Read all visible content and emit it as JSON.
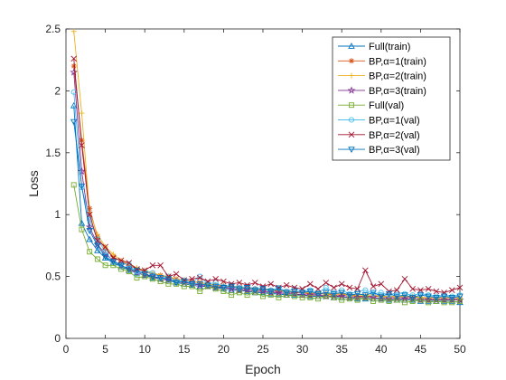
{
  "chart_data": {
    "type": "line",
    "xlabel": "Epoch",
    "ylabel": "Loss",
    "xlim": [
      0,
      50
    ],
    "ylim": [
      0,
      2.5
    ],
    "xticks": [
      0,
      5,
      10,
      15,
      20,
      25,
      30,
      35,
      40,
      45,
      50
    ],
    "yticks": [
      0,
      0.5,
      1,
      1.5,
      2,
      2.5
    ],
    "ytick_labels": [
      "0",
      "0.5",
      "1",
      "1.5",
      "2",
      "2.5"
    ],
    "grid": false,
    "legend": "top-right",
    "x": [
      1,
      2,
      3,
      4,
      5,
      6,
      7,
      8,
      9,
      10,
      11,
      12,
      13,
      14,
      15,
      16,
      17,
      18,
      19,
      20,
      21,
      22,
      23,
      24,
      25,
      26,
      27,
      28,
      29,
      30,
      31,
      32,
      33,
      34,
      35,
      36,
      37,
      38,
      39,
      40,
      41,
      42,
      43,
      44,
      45,
      46,
      47,
      48,
      49,
      50
    ],
    "series": [
      {
        "name": "Full(train)",
        "color": "#0072BD",
        "marker": "triangle-up",
        "values": [
          1.88,
          0.93,
          0.8,
          0.71,
          0.65,
          0.61,
          0.58,
          0.55,
          0.53,
          0.51,
          0.49,
          0.48,
          0.47,
          0.45,
          0.44,
          0.43,
          0.42,
          0.42,
          0.41,
          0.4,
          0.39,
          0.39,
          0.38,
          0.37,
          0.37,
          0.36,
          0.36,
          0.35,
          0.35,
          0.35,
          0.34,
          0.34,
          0.34,
          0.33,
          0.33,
          0.33,
          0.32,
          0.32,
          0.32,
          0.32,
          0.31,
          0.31,
          0.31,
          0.31,
          0.3,
          0.3,
          0.3,
          0.3,
          0.3,
          0.29
        ]
      },
      {
        "name": "BP,α=1(train)",
        "color": "#D95319",
        "marker": "asterisk",
        "values": [
          2.2,
          1.6,
          1.05,
          0.82,
          0.72,
          0.66,
          0.62,
          0.59,
          0.56,
          0.54,
          0.52,
          0.51,
          0.49,
          0.48,
          0.47,
          0.46,
          0.45,
          0.44,
          0.43,
          0.42,
          0.42,
          0.41,
          0.4,
          0.4,
          0.39,
          0.39,
          0.38,
          0.38,
          0.37,
          0.37,
          0.36,
          0.36,
          0.36,
          0.35,
          0.35,
          0.35,
          0.34,
          0.34,
          0.34,
          0.34,
          0.33,
          0.33,
          0.33,
          0.33,
          0.33,
          0.32,
          0.32,
          0.32,
          0.32,
          0.32
        ]
      },
      {
        "name": "BP,α=2(train)",
        "color": "#EDB120",
        "marker": "plus",
        "values": [
          2.48,
          1.82,
          1.02,
          0.84,
          0.74,
          0.68,
          0.63,
          0.6,
          0.57,
          0.55,
          0.53,
          0.51,
          0.5,
          0.48,
          0.47,
          0.46,
          0.45,
          0.44,
          0.43,
          0.43,
          0.42,
          0.41,
          0.41,
          0.4,
          0.4,
          0.39,
          0.39,
          0.38,
          0.38,
          0.37,
          0.37,
          0.37,
          0.36,
          0.36,
          0.36,
          0.35,
          0.35,
          0.35,
          0.35,
          0.34,
          0.34,
          0.34,
          0.34,
          0.34,
          0.33,
          0.33,
          0.33,
          0.33,
          0.33,
          0.33
        ]
      },
      {
        "name": "BP,α=3(train)",
        "color": "#7E2F8E",
        "marker": "star",
        "values": [
          2.15,
          1.35,
          0.9,
          0.76,
          0.68,
          0.63,
          0.59,
          0.56,
          0.53,
          0.51,
          0.5,
          0.48,
          0.47,
          0.46,
          0.45,
          0.44,
          0.43,
          0.42,
          0.41,
          0.41,
          0.4,
          0.39,
          0.39,
          0.38,
          0.38,
          0.37,
          0.37,
          0.36,
          0.36,
          0.35,
          0.35,
          0.35,
          0.34,
          0.34,
          0.34,
          0.33,
          0.33,
          0.33,
          0.33,
          0.32,
          0.32,
          0.32,
          0.32,
          0.32,
          0.31,
          0.31,
          0.31,
          0.31,
          0.31,
          0.31
        ]
      },
      {
        "name": "Full(val)",
        "color": "#77AC30",
        "marker": "square",
        "values": [
          1.24,
          0.88,
          0.7,
          0.64,
          0.59,
          0.59,
          0.56,
          0.54,
          0.49,
          0.5,
          0.48,
          0.46,
          0.44,
          0.44,
          0.42,
          0.42,
          0.38,
          0.42,
          0.4,
          0.38,
          0.35,
          0.37,
          0.35,
          0.37,
          0.34,
          0.35,
          0.33,
          0.35,
          0.34,
          0.33,
          0.33,
          0.32,
          0.34,
          0.33,
          0.31,
          0.32,
          0.31,
          0.33,
          0.3,
          0.31,
          0.3,
          0.31,
          0.29,
          0.3,
          0.31,
          0.29,
          0.3,
          0.29,
          0.29,
          0.3
        ]
      },
      {
        "name": "BP,α=1(val)",
        "color": "#4DBEEE",
        "marker": "circle",
        "values": [
          1.99,
          1.22,
          0.96,
          0.8,
          0.7,
          0.62,
          0.6,
          0.6,
          0.52,
          0.54,
          0.53,
          0.49,
          0.5,
          0.46,
          0.47,
          0.45,
          0.5,
          0.44,
          0.45,
          0.42,
          0.43,
          0.41,
          0.42,
          0.4,
          0.41,
          0.39,
          0.41,
          0.38,
          0.4,
          0.38,
          0.39,
          0.37,
          0.41,
          0.37,
          0.39,
          0.36,
          0.38,
          0.39,
          0.36,
          0.37,
          0.35,
          0.37,
          0.36,
          0.35,
          0.36,
          0.35,
          0.34,
          0.35,
          0.34,
          0.35
        ]
      },
      {
        "name": "BP,α=2(val)",
        "color": "#A2142F",
        "marker": "cross",
        "values": [
          2.26,
          1.56,
          1.0,
          0.79,
          0.74,
          0.65,
          0.63,
          0.61,
          0.56,
          0.55,
          0.59,
          0.59,
          0.5,
          0.52,
          0.47,
          0.48,
          0.49,
          0.46,
          0.48,
          0.46,
          0.44,
          0.45,
          0.43,
          0.45,
          0.42,
          0.44,
          0.41,
          0.43,
          0.41,
          0.4,
          0.44,
          0.4,
          0.45,
          0.41,
          0.44,
          0.41,
          0.4,
          0.55,
          0.42,
          0.44,
          0.38,
          0.39,
          0.48,
          0.4,
          0.39,
          0.4,
          0.38,
          0.37,
          0.39,
          0.41
        ]
      },
      {
        "name": "BP,α=3(val)",
        "color": "#0072BD",
        "marker": "triangle-down",
        "values": [
          1.75,
          1.23,
          0.87,
          0.75,
          0.66,
          0.62,
          0.59,
          0.56,
          0.55,
          0.52,
          0.5,
          0.49,
          0.48,
          0.45,
          0.46,
          0.44,
          0.44,
          0.43,
          0.42,
          0.41,
          0.42,
          0.4,
          0.41,
          0.39,
          0.4,
          0.38,
          0.4,
          0.37,
          0.38,
          0.37,
          0.38,
          0.36,
          0.37,
          0.36,
          0.37,
          0.35,
          0.36,
          0.35,
          0.37,
          0.34,
          0.36,
          0.34,
          0.35,
          0.33,
          0.35,
          0.34,
          0.33,
          0.34,
          0.33,
          0.34
        ]
      }
    ]
  }
}
